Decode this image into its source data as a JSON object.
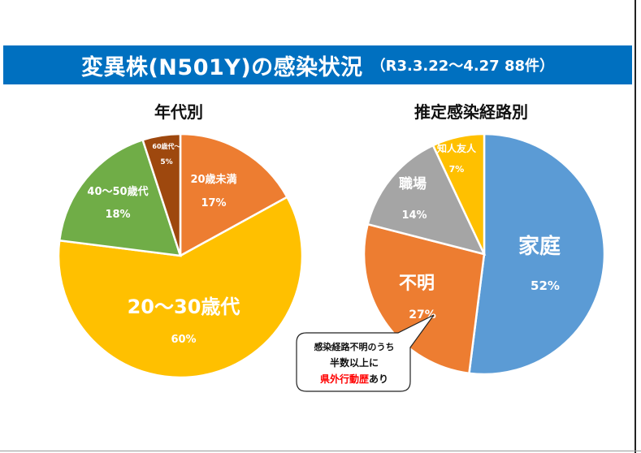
{
  "header": {
    "title": "変異株(N501Y)の感染状況",
    "subtitle": "（R3.3.22～4.27 88件）"
  },
  "colors": {
    "title_bar": "#0070c0",
    "orange": "#ed7d31",
    "yellow": "#ffc000",
    "green": "#70ad47",
    "brown": "#9e480e",
    "blue": "#5b9bd5",
    "gray": "#a5a5a5",
    "highlight_red": "#ff0000"
  },
  "callout": {
    "line1": "感染経路不明のうち",
    "line2": "半数以上に",
    "line3_highlight": "県外行動歴",
    "line3_rest": "あり"
  },
  "chart_data": [
    {
      "type": "pie",
      "title": "年代別",
      "slices": [
        {
          "label": "20歳未満",
          "value": 17,
          "value_label": "17%",
          "color": "#ed7d31"
        },
        {
          "label": "20～30歳代",
          "value": 60,
          "value_label": "60%",
          "color": "#ffc000"
        },
        {
          "label": "40～50歳代",
          "value": 18,
          "value_label": "18%",
          "color": "#70ad47"
        },
        {
          "label": "60歳代～",
          "value": 5,
          "value_label": "5%",
          "color": "#9e480e"
        }
      ]
    },
    {
      "type": "pie",
      "title": "推定感染経路別",
      "slices": [
        {
          "label": "家庭",
          "value": 52,
          "value_label": "52%",
          "color": "#5b9bd5"
        },
        {
          "label": "不明",
          "value": 27,
          "value_label": "27%",
          "color": "#ed7d31"
        },
        {
          "label": "職場",
          "value": 14,
          "value_label": "14%",
          "color": "#a5a5a5"
        },
        {
          "label": "知人友人",
          "value": 7,
          "value_label": "7%",
          "color": "#ffc000"
        }
      ]
    }
  ]
}
